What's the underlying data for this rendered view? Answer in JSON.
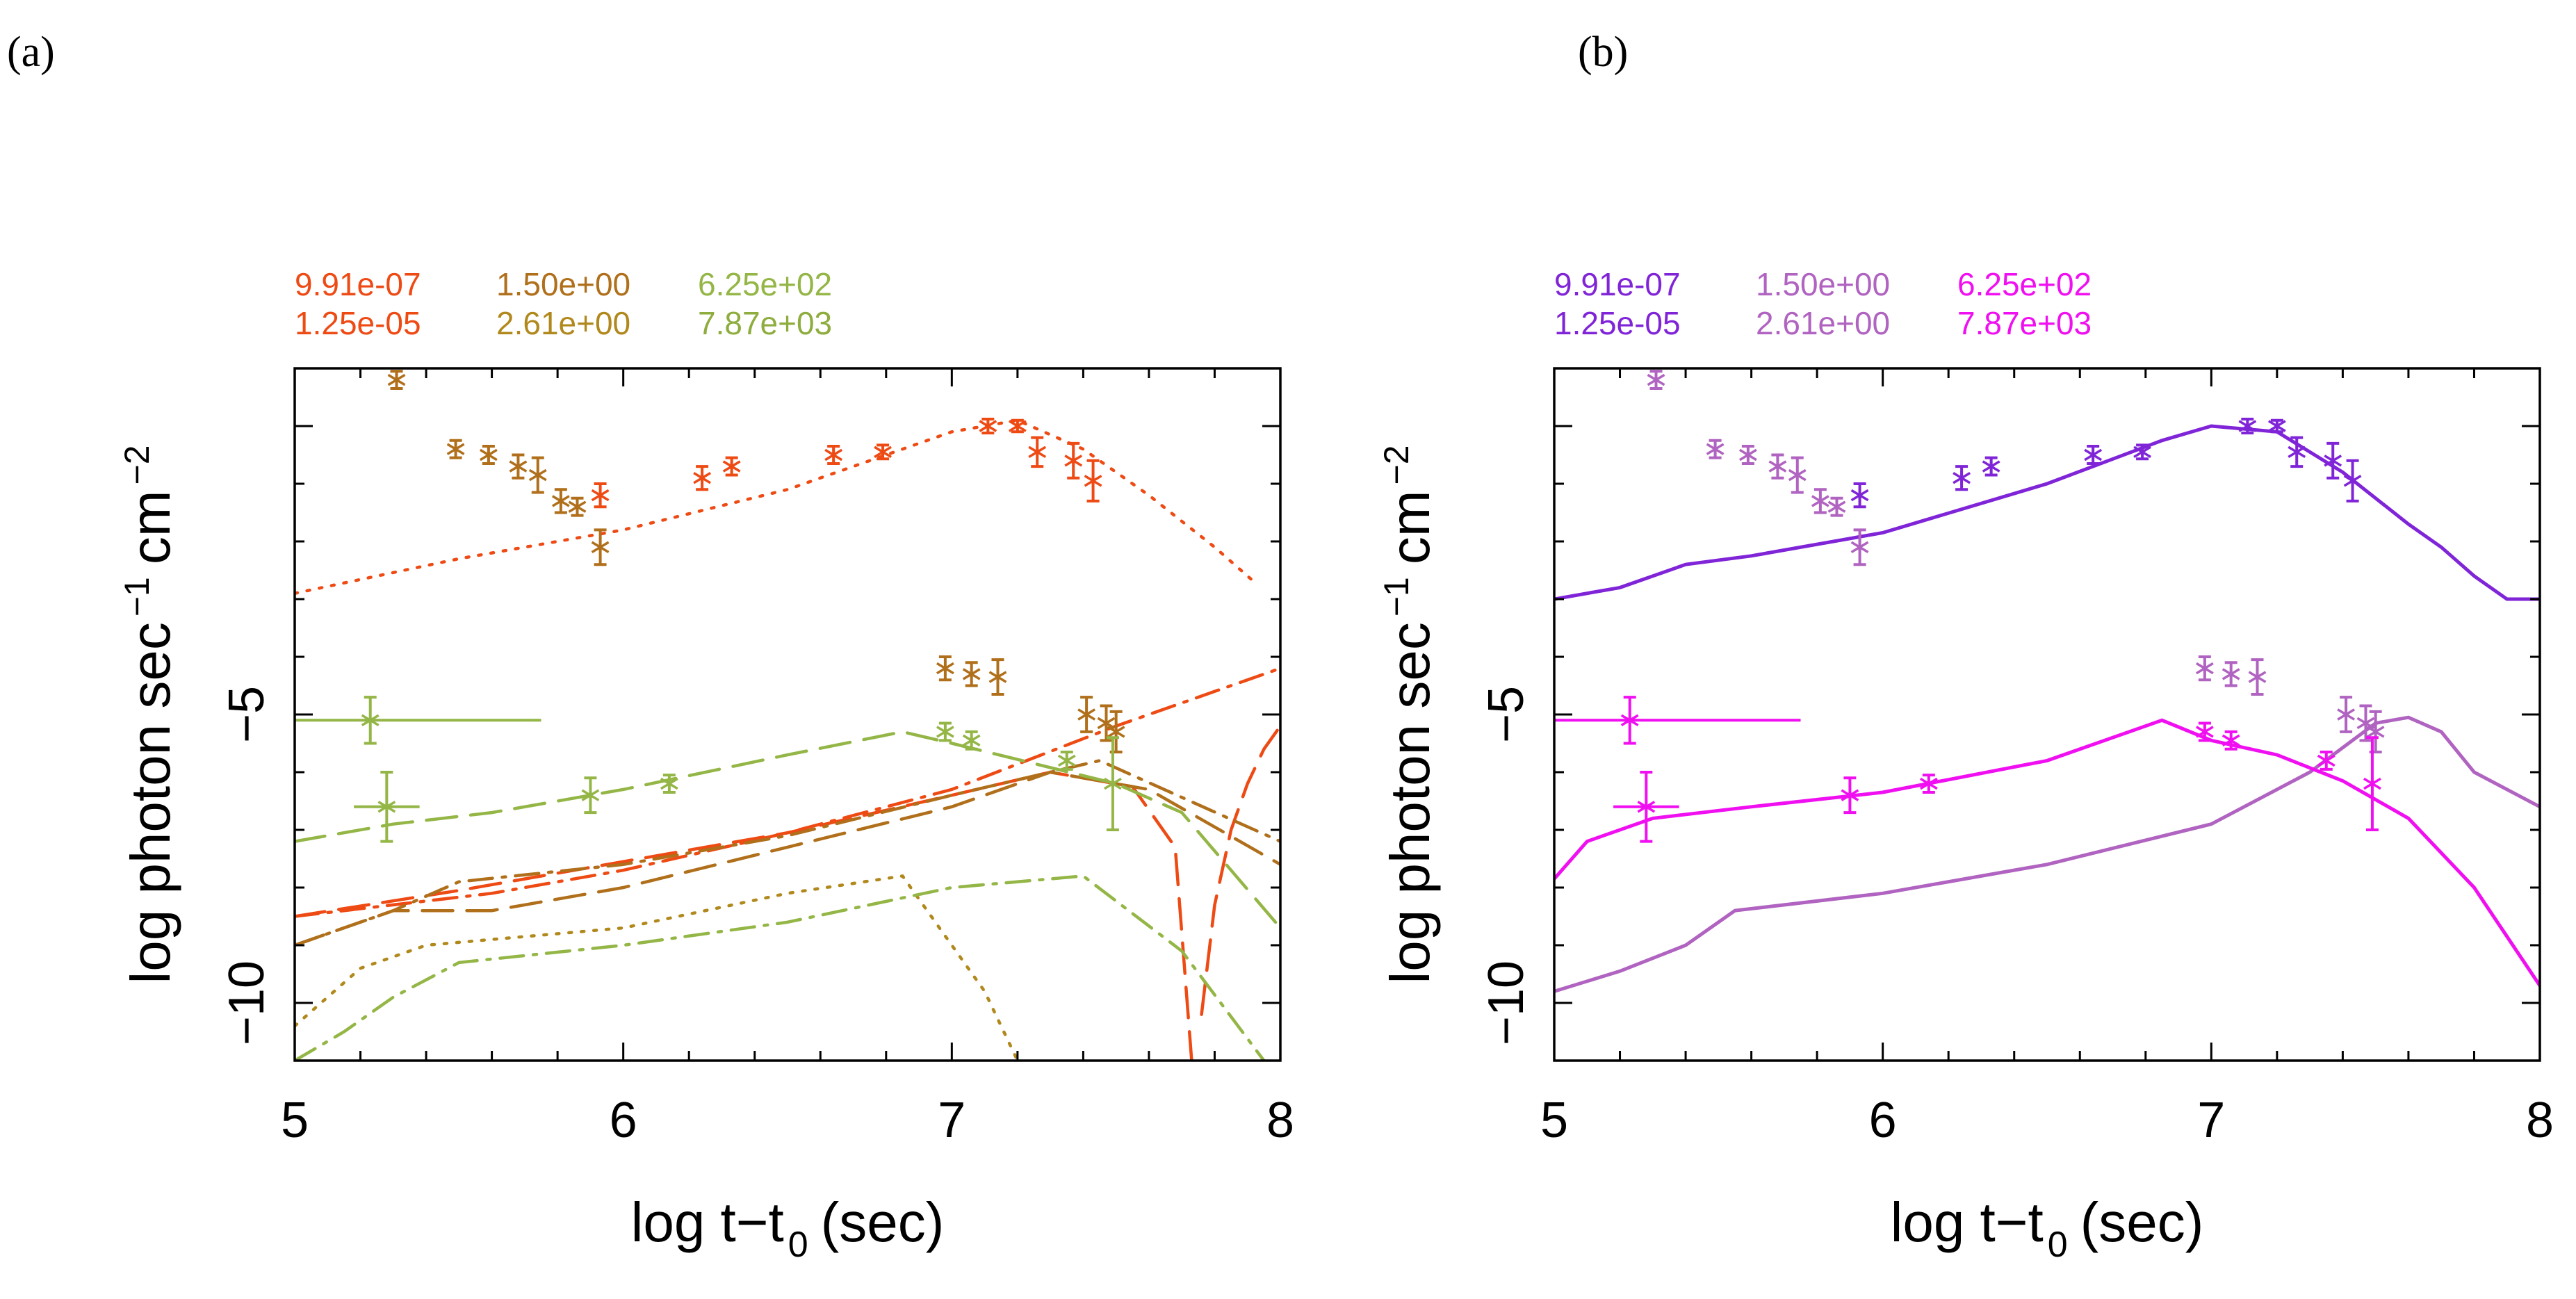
{
  "chart_data": [
    {
      "panel": "(a)",
      "type": "line",
      "xlabel": "log t−t",
      "xlabel_sub": "0",
      "xlabel_unit": "(sec)",
      "ylabel": "log photon sec",
      "ylabel_sup1": "−1",
      "ylabel_mid": "cm",
      "ylabel_sup2": "−2",
      "xlim": [
        5,
        8
      ],
      "ylim": [
        -11,
        1
      ],
      "xticks": [
        {
          "v": 5,
          "label": "5"
        },
        {
          "v": 6,
          "label": "6"
        },
        {
          "v": 7,
          "label": "7"
        },
        {
          "v": 8,
          "label": "8"
        }
      ],
      "yticks": [
        {
          "v": -5,
          "label": "−5"
        },
        {
          "v": -10,
          "label": "−10"
        }
      ],
      "legend": [
        {
          "label": "9.91e-07",
          "color": "#ee4a14"
        },
        {
          "label": "1.25e-05",
          "color": "#ee4a14"
        },
        {
          "label": "1.50e+00",
          "color": "#b06f1a"
        },
        {
          "label": "2.61e+00",
          "color": "#b0881c"
        },
        {
          "label": "6.25e+02",
          "color": "#94b646"
        },
        {
          "label": "7.87e+03",
          "color": "#8ead3e"
        }
      ],
      "points": [
        {
          "name": "optical",
          "color": "#ee4a14",
          "data": [
            [
              5.93,
              -1.2,
              0.2
            ],
            [
              6.24,
              -0.9,
              0.2
            ],
            [
              6.33,
              -0.7,
              0.15
            ],
            [
              6.64,
              -0.5,
              0.15
            ],
            [
              6.79,
              -0.45,
              0.12
            ],
            [
              7.11,
              0.0,
              0.12
            ],
            [
              7.2,
              0.0,
              0.1
            ],
            [
              7.26,
              -0.45,
              0.25
            ],
            [
              7.37,
              -0.6,
              0.3
            ],
            [
              7.43,
              -0.95,
              0.35
            ]
          ]
        },
        {
          "name": "uv",
          "color": "#b06f1a",
          "data": [
            [
              5.31,
              0.8,
              0.15
            ],
            [
              5.49,
              -0.4,
              0.15
            ],
            [
              5.59,
              -0.5,
              0.15
            ],
            [
              5.68,
              -0.7,
              0.2
            ],
            [
              5.74,
              -0.85,
              0.3
            ],
            [
              5.81,
              -1.3,
              0.2
            ],
            [
              5.86,
              -1.4,
              0.15
            ],
            [
              5.93,
              -2.1,
              0.3
            ],
            [
              6.98,
              -4.2,
              0.2
            ],
            [
              7.06,
              -4.3,
              0.2
            ],
            [
              7.14,
              -4.35,
              0.3
            ],
            [
              7.41,
              -5.0,
              0.3
            ],
            [
              7.47,
              -5.15,
              0.3
            ],
            [
              7.5,
              -5.3,
              0.35
            ]
          ]
        },
        {
          "name": "xray",
          "color": "#94b646",
          "data": [
            [
              5.23,
              -5.1,
              0.4
            ],
            [
              5.28,
              -6.6,
              0.6
            ],
            [
              5.9,
              -6.4,
              0.3
            ],
            [
              6.14,
              -6.2,
              0.15
            ],
            [
              6.98,
              -5.3,
              0.15
            ],
            [
              7.06,
              -5.45,
              0.15
            ],
            [
              7.35,
              -5.8,
              0.15
            ],
            [
              7.49,
              -6.2,
              0.8
            ]
          ]
        }
      ],
      "hbars": [
        {
          "color": "#94b646",
          "y": -5.1,
          "x1": 5.0,
          "x2": 5.75
        },
        {
          "color": "#94b646",
          "y": -6.6,
          "x1": 5.18,
          "x2": 5.38
        }
      ],
      "series": [
        {
          "name": "opt-dotted",
          "color": "#ee4a14",
          "dash": "dot",
          "x": [
            5.0,
            5.5,
            6.0,
            6.5,
            7.0,
            7.2,
            7.4,
            7.6,
            7.8,
            7.92
          ],
          "y": [
            -2.9,
            -2.3,
            -1.8,
            -1.1,
            -0.1,
            0.1,
            -0.4,
            -1.2,
            -2.1,
            -2.7
          ]
        },
        {
          "name": "opt-dashed",
          "color": "#ee4a14",
          "dash": "dash",
          "x": [
            5.0,
            5.5,
            6.0,
            6.5,
            7.0,
            7.3,
            7.55,
            7.68,
            7.73
          ],
          "y": [
            -8.5,
            -8.05,
            -7.55,
            -7.05,
            -6.4,
            -6.0,
            -6.25,
            -7.3,
            -11.0
          ]
        },
        {
          "name": "opt-rise-dashed",
          "color": "#ee4a14",
          "dash": "dash",
          "x": [
            7.76,
            7.8,
            7.85,
            7.9,
            7.95,
            8.0
          ],
          "y": [
            -10.2,
            -8.3,
            -7.0,
            -6.2,
            -5.6,
            -5.2
          ]
        },
        {
          "name": "opt-dashdot",
          "color": "#ee4a14",
          "dash": "dashdot",
          "x": [
            5.0,
            5.3,
            5.6,
            6.0,
            6.5,
            7.0,
            7.5,
            8.0
          ],
          "y": [
            -8.5,
            -8.3,
            -8.1,
            -7.7,
            -7.05,
            -6.3,
            -5.2,
            -4.2
          ]
        },
        {
          "name": "uv-dashed",
          "color": "#b06f1a",
          "dash": "dash",
          "x": [
            5.0,
            5.3,
            5.6,
            6.0,
            6.5,
            7.0,
            7.3,
            7.6,
            8.0
          ],
          "y": [
            -9.0,
            -8.4,
            -8.4,
            -8.0,
            -7.3,
            -6.6,
            -6.0,
            -6.3,
            -7.6
          ]
        },
        {
          "name": "uv-dashdot",
          "color": "#b06f1a",
          "dash": "dashdot",
          "x": [
            5.0,
            5.3,
            5.5,
            6.0,
            6.5,
            7.0,
            7.45,
            8.0
          ],
          "y": [
            -9.0,
            -8.4,
            -7.9,
            -7.6,
            -7.1,
            -6.4,
            -5.8,
            -7.2
          ]
        },
        {
          "name": "uv-dotted",
          "color": "#b0881c",
          "dash": "dot",
          "x": [
            5.0,
            5.2,
            5.4,
            5.6,
            6.0,
            6.5,
            6.85,
            7.1,
            7.2
          ],
          "y": [
            -10.4,
            -9.4,
            -9.0,
            -8.9,
            -8.7,
            -8.1,
            -7.8,
            -9.8,
            -11.0
          ]
        },
        {
          "name": "xray-dashed",
          "color": "#94b646",
          "dash": "dash",
          "x": [
            5.0,
            5.3,
            5.6,
            6.0,
            6.5,
            6.85,
            7.0,
            7.5,
            7.7,
            8.0
          ],
          "y": [
            -7.2,
            -6.9,
            -6.7,
            -6.3,
            -5.7,
            -5.3,
            -5.5,
            -6.2,
            -6.7,
            -8.7
          ]
        },
        {
          "name": "xray-dashdot",
          "color": "#94b646",
          "dash": "dashdot",
          "x": [
            5.0,
            5.15,
            5.3,
            5.5,
            6.0,
            6.5,
            7.0,
            7.4,
            7.7,
            7.95
          ],
          "y": [
            -11.0,
            -10.5,
            -9.9,
            -9.3,
            -9.0,
            -8.6,
            -8.0,
            -7.8,
            -9.1,
            -11.0
          ]
        }
      ]
    },
    {
      "panel": "(b)",
      "type": "line",
      "xlabel": "log t−t",
      "xlabel_sub": "0",
      "xlabel_unit": "(sec)",
      "ylabel": "log photon sec",
      "ylabel_sup1": "−1",
      "ylabel_mid": "cm",
      "ylabel_sup2": "−2",
      "xlim": [
        5,
        8
      ],
      "ylim": [
        -11,
        1
      ],
      "xticks": [
        {
          "v": 5,
          "label": "5"
        },
        {
          "v": 6,
          "label": "6"
        },
        {
          "v": 7,
          "label": "7"
        },
        {
          "v": 8,
          "label": "8"
        }
      ],
      "yticks": [
        {
          "v": -5,
          "label": "−5"
        },
        {
          "v": -10,
          "label": "−10"
        }
      ],
      "legend": [
        {
          "label": "9.91e-07",
          "color": "#8024d8"
        },
        {
          "label": "1.25e-05",
          "color": "#8024d8"
        },
        {
          "label": "1.50e+00",
          "color": "#b063c0"
        },
        {
          "label": "2.61e+00",
          "color": "#b063c0"
        },
        {
          "label": "6.25e+02",
          "color": "#f00ff0"
        },
        {
          "label": "7.87e+03",
          "color": "#f00ff0"
        }
      ],
      "points": [
        {
          "name": "optical",
          "color": "#8024d8",
          "data": [
            [
              5.93,
              -1.2,
              0.2
            ],
            [
              6.24,
              -0.9,
              0.2
            ],
            [
              6.33,
              -0.7,
              0.15
            ],
            [
              6.64,
              -0.5,
              0.15
            ],
            [
              6.79,
              -0.45,
              0.12
            ],
            [
              7.11,
              0.0,
              0.12
            ],
            [
              7.2,
              0.0,
              0.1
            ],
            [
              7.26,
              -0.45,
              0.25
            ],
            [
              7.37,
              -0.6,
              0.3
            ],
            [
              7.43,
              -0.95,
              0.35
            ]
          ]
        },
        {
          "name": "uv",
          "color": "#b063c0",
          "data": [
            [
              5.31,
              0.8,
              0.15
            ],
            [
              5.49,
              -0.4,
              0.15
            ],
            [
              5.59,
              -0.5,
              0.15
            ],
            [
              5.68,
              -0.7,
              0.2
            ],
            [
              5.74,
              -0.85,
              0.3
            ],
            [
              5.81,
              -1.3,
              0.2
            ],
            [
              5.86,
              -1.4,
              0.15
            ],
            [
              5.93,
              -2.1,
              0.3
            ],
            [
              6.98,
              -4.2,
              0.2
            ],
            [
              7.06,
              -4.3,
              0.2
            ],
            [
              7.14,
              -4.35,
              0.3
            ],
            [
              7.41,
              -5.0,
              0.3
            ],
            [
              7.47,
              -5.15,
              0.3
            ],
            [
              7.5,
              -5.3,
              0.35
            ]
          ]
        },
        {
          "name": "xray",
          "color": "#f00ff0",
          "data": [
            [
              5.23,
              -5.1,
              0.4
            ],
            [
              5.28,
              -6.6,
              0.6
            ],
            [
              5.9,
              -6.4,
              0.3
            ],
            [
              6.14,
              -6.2,
              0.15
            ],
            [
              6.98,
              -5.3,
              0.15
            ],
            [
              7.06,
              -5.45,
              0.15
            ],
            [
              7.35,
              -5.8,
              0.15
            ],
            [
              7.49,
              -6.2,
              0.8
            ]
          ]
        }
      ],
      "hbars": [
        {
          "color": "#f00ff0",
          "y": -5.1,
          "x1": 5.0,
          "x2": 5.75
        },
        {
          "color": "#f00ff0",
          "y": -6.6,
          "x1": 5.18,
          "x2": 5.38
        }
      ],
      "series": [
        {
          "name": "opt-model",
          "color": "#8024d8",
          "dash": "solid",
          "x": [
            5.0,
            5.2,
            5.4,
            5.6,
            6.0,
            6.5,
            6.85,
            7.0,
            7.2,
            7.4,
            7.6,
            7.7,
            7.8,
            7.9,
            8.0
          ],
          "y": [
            -3.0,
            -2.8,
            -2.4,
            -2.25,
            -1.85,
            -1.0,
            -0.25,
            0.0,
            -0.1,
            -0.8,
            -1.7,
            -2.1,
            -2.6,
            -3.0,
            -3.0
          ]
        },
        {
          "name": "uv-model",
          "color": "#b063c0",
          "dash": "solid",
          "x": [
            5.0,
            5.2,
            5.4,
            5.55,
            6.0,
            6.5,
            7.0,
            7.3,
            7.5,
            7.6,
            7.7,
            7.8,
            8.0
          ],
          "y": [
            -9.8,
            -9.45,
            -9.0,
            -8.4,
            -8.1,
            -7.6,
            -6.9,
            -6.0,
            -5.15,
            -5.05,
            -5.3,
            -6.0,
            -6.6
          ]
        },
        {
          "name": "xray-model",
          "color": "#f00ff0",
          "dash": "solid",
          "x": [
            5.0,
            5.1,
            5.3,
            5.6,
            6.0,
            6.5,
            6.85,
            7.0,
            7.2,
            7.4,
            7.6,
            7.8,
            8.0
          ],
          "y": [
            -7.85,
            -7.2,
            -6.8,
            -6.6,
            -6.35,
            -5.8,
            -5.1,
            -5.45,
            -5.7,
            -6.15,
            -6.8,
            -8.0,
            -9.7
          ]
        }
      ]
    }
  ]
}
